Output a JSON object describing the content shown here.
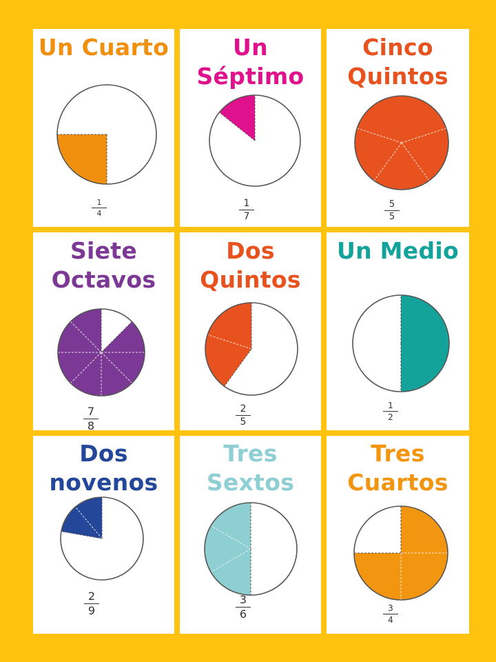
{
  "poster": {
    "background_color": "#FFC20E",
    "cards": [
      {
        "title": "Un Cuarto",
        "numerator": "1",
        "denominator": "4",
        "color": "#F0900E"
      },
      {
        "title": "Un\nSéptimo",
        "numerator": "1",
        "denominator": "7",
        "color": "#E0118C"
      },
      {
        "title": "Cinco\nQuintos",
        "numerator": "5",
        "denominator": "5",
        "color": "#E8521E"
      },
      {
        "title": "Siete\nOctavos",
        "numerator": "7",
        "denominator": "8",
        "color": "#7B3894"
      },
      {
        "title": "Dos\nQuintos",
        "numerator": "2",
        "denominator": "5",
        "color": "#E8521E"
      },
      {
        "title": "Un Medio",
        "numerator": "1",
        "denominator": "2",
        "color": "#14A39A"
      },
      {
        "title": "Dos\nnovenos",
        "numerator": "2",
        "denominator": "9",
        "color": "#24479A"
      },
      {
        "title": "Tres\nSextos",
        "numerator": "3",
        "denominator": "6",
        "color": "#8ECFD4"
      },
      {
        "title": "Tres\nCuartos",
        "numerator": "3",
        "denominator": "4",
        "color": "#F29510"
      }
    ]
  }
}
